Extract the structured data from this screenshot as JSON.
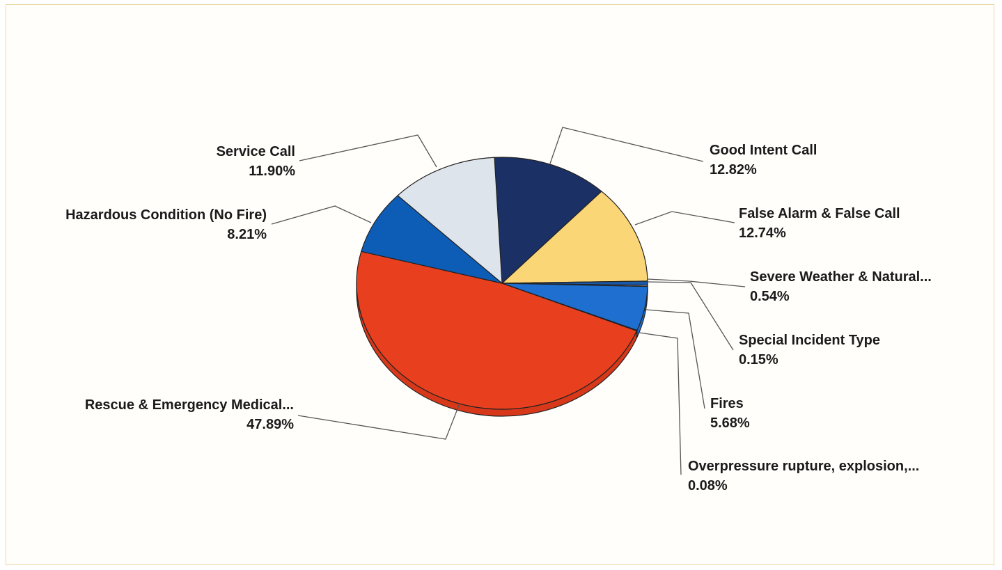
{
  "chart_data": {
    "type": "pie",
    "title": "",
    "slices": [
      {
        "label": "Good Intent Call",
        "percent_label": "12.82%",
        "value": 12.82,
        "color": "#1b3064"
      },
      {
        "label": "False Alarm & False Call",
        "percent_label": "12.74%",
        "value": 12.74,
        "color": "#fbd677"
      },
      {
        "label": "Severe Weather & Natural...",
        "percent_label": "0.54%",
        "value": 0.54,
        "color": "#1b58a8"
      },
      {
        "label": "Special Incident Type",
        "percent_label": "0.15%",
        "value": 0.15,
        "color": "#e8e8e8"
      },
      {
        "label": "Fires",
        "percent_label": "5.68%",
        "value": 5.68,
        "color": "#1e6fd0"
      },
      {
        "label": "Overpressure rupture, explosion,...",
        "percent_label": "0.08%",
        "value": 0.08,
        "color": "#3a3a3a"
      },
      {
        "label": "Rescue & Emergency Medical...",
        "percent_label": "47.89%",
        "value": 47.89,
        "color": "#e8401f"
      },
      {
        "label": "Hazardous Condition (No Fire)",
        "percent_label": "8.21%",
        "value": 8.21,
        "color": "#0d5db7"
      },
      {
        "label": "Service Call",
        "percent_label": "11.90%",
        "value": 11.9,
        "color": "#dde4ec"
      }
    ],
    "colors": {
      "frame_border": "#ead7a4",
      "leader_line": "#555555",
      "slice_edge": "#222222",
      "rescue_side": "#d8381a"
    }
  }
}
